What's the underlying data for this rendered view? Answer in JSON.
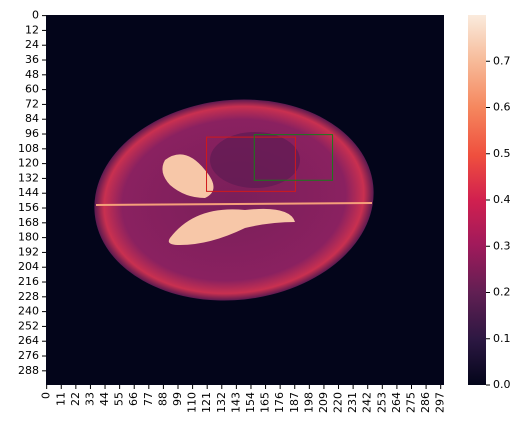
{
  "chart_data": {
    "type": "heatmap",
    "xlim": [
      0,
      300
    ],
    "ylim": [
      0,
      300
    ],
    "xticks": [
      0,
      11,
      22,
      33,
      44,
      55,
      66,
      77,
      88,
      99,
      110,
      121,
      132,
      143,
      154,
      165,
      176,
      187,
      198,
      209,
      220,
      231,
      242,
      253,
      264,
      275,
      286,
      297
    ],
    "yticks": [
      0,
      12,
      24,
      36,
      48,
      60,
      72,
      84,
      96,
      108,
      120,
      132,
      144,
      156,
      168,
      180,
      192,
      204,
      216,
      228,
      240,
      252,
      264,
      276,
      288
    ],
    "clim": [
      0,
      0.8
    ],
    "cticks": [
      {
        "value": 0,
        "label": "0.0"
      },
      {
        "value": 0.1,
        "label": "0.1"
      },
      {
        "value": 0.2,
        "label": "0.2"
      },
      {
        "value": 0.3,
        "label": "0.3"
      },
      {
        "value": 0.4,
        "label": "0.4"
      },
      {
        "value": 0.5,
        "label": "0.5"
      },
      {
        "value": 0.6,
        "label": "0.6"
      },
      {
        "value": 0.7,
        "label": "0.7"
      }
    ],
    "boxes": [
      {
        "color": "#d0191c",
        "x0": 121,
        "x1": 188,
        "y0": 99,
        "y1": 143
      },
      {
        "color": "#1a7a1a",
        "x0": 157,
        "x1": 216,
        "y0": 97,
        "y1": 134
      }
    ]
  }
}
